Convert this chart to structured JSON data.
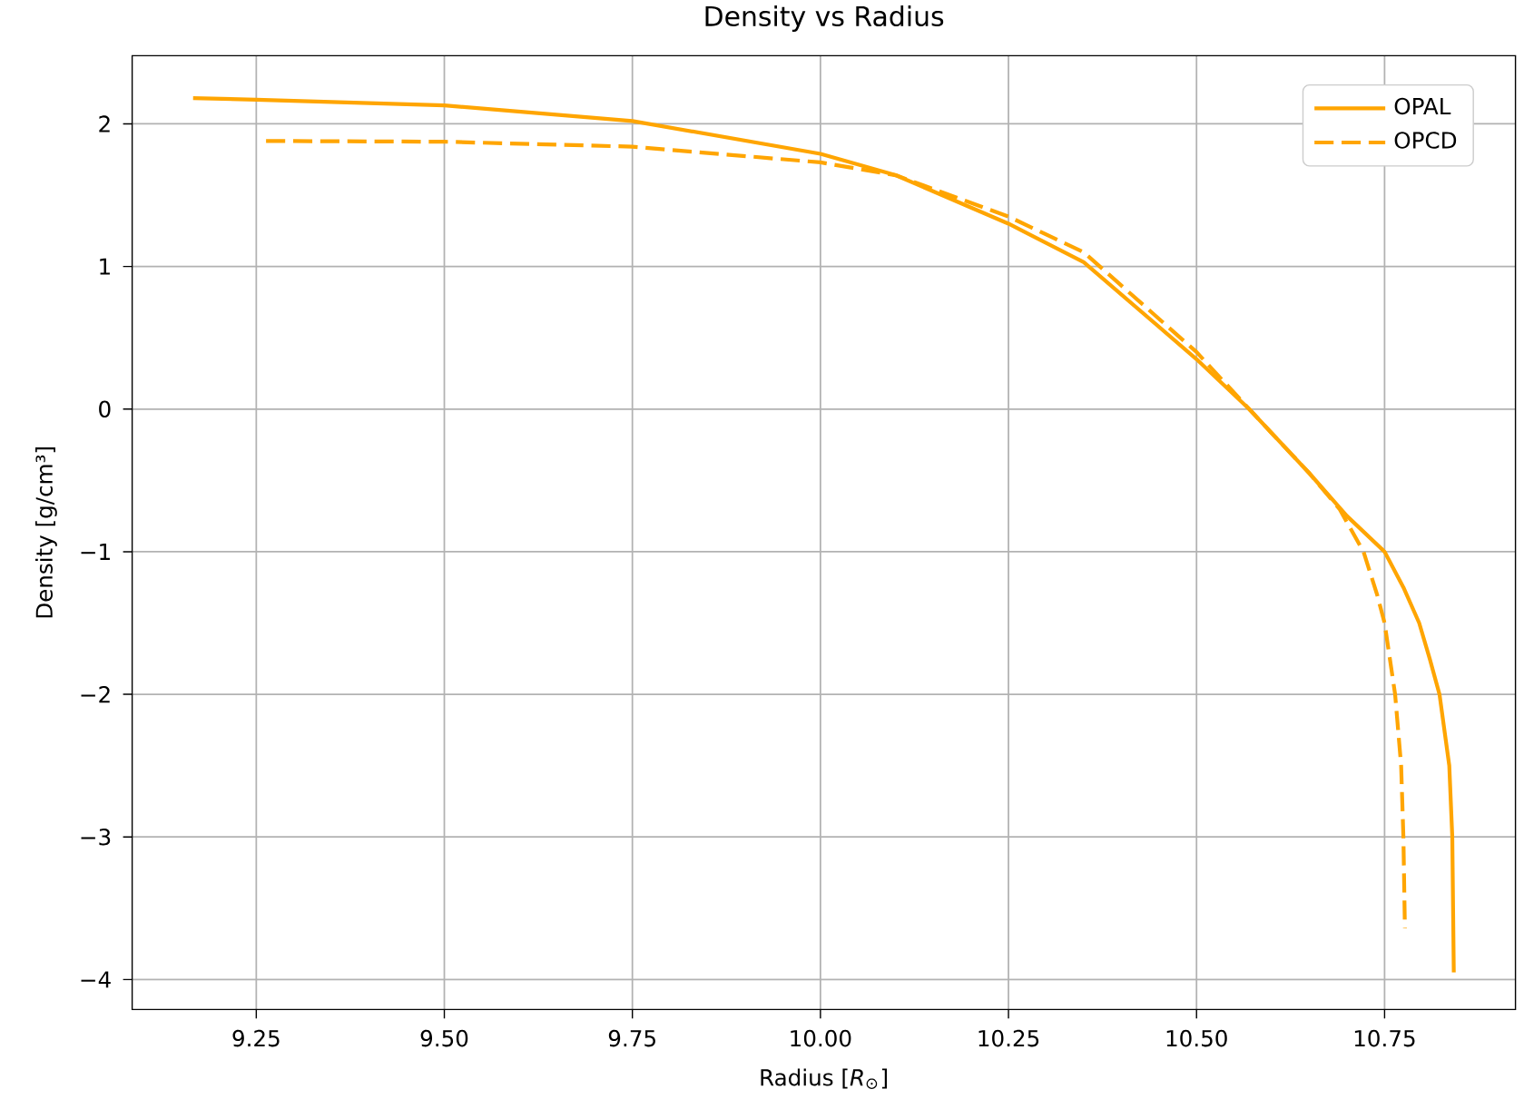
{
  "chart_data": {
    "type": "line",
    "title": "Density vs Radius",
    "xlabel": "Radius [*R*$_{⊙}$]",
    "ylabel": "Density [g/cm³]",
    "series": [
      {
        "name": "OPAL",
        "color": "#ffa500",
        "line_style": "solid",
        "x": [
          9.166,
          9.25,
          9.5,
          9.75,
          10.0,
          10.1,
          10.25,
          10.35,
          10.5,
          10.57,
          10.65,
          10.7,
          10.75,
          10.775,
          10.796,
          10.81,
          10.823,
          10.836,
          10.84,
          10.842
        ],
        "values": [
          2.18,
          2.17,
          2.13,
          2.02,
          1.79,
          1.64,
          1.3,
          1.03,
          0.35,
          0.0,
          -0.45,
          -0.75,
          -1.0,
          -1.25,
          -1.5,
          -1.75,
          -2.0,
          -2.5,
          -3.0,
          -3.95
        ]
      },
      {
        "name": "OPCD",
        "color": "#ffa500",
        "line_style": "dashed",
        "x": [
          9.263,
          9.5,
          9.75,
          10.0,
          10.1,
          10.25,
          10.35,
          10.5,
          10.57,
          10.65,
          10.69,
          10.722,
          10.74,
          10.75,
          10.764,
          10.772,
          10.775,
          10.777
        ],
        "values": [
          1.88,
          1.875,
          1.84,
          1.73,
          1.64,
          1.35,
          1.1,
          0.4,
          0.0,
          -0.45,
          -0.7,
          -1.0,
          -1.3,
          -1.5,
          -2.0,
          -2.5,
          -3.0,
          -3.64
        ]
      }
    ],
    "xlim": [
      9.085,
      10.924
    ],
    "ylim": [
      -4.21,
      2.478
    ],
    "xticks": [
      9.25,
      {
        "value": 9.5,
        "label": "9.50"
      },
      9.75,
      {
        "value": 10.0,
        "label": "10.00"
      },
      10.25,
      {
        "value": 10.5,
        "label": "10.50"
      },
      10.75
    ],
    "yticks": [
      {
        "value": -4,
        "label": "−4"
      },
      {
        "value": -3,
        "label": "−3"
      },
      {
        "value": -2,
        "label": "−2"
      },
      {
        "value": -1,
        "label": "−1"
      },
      0,
      1,
      2
    ],
    "grid": true,
    "legend": "top right",
    "marker": "none"
  }
}
